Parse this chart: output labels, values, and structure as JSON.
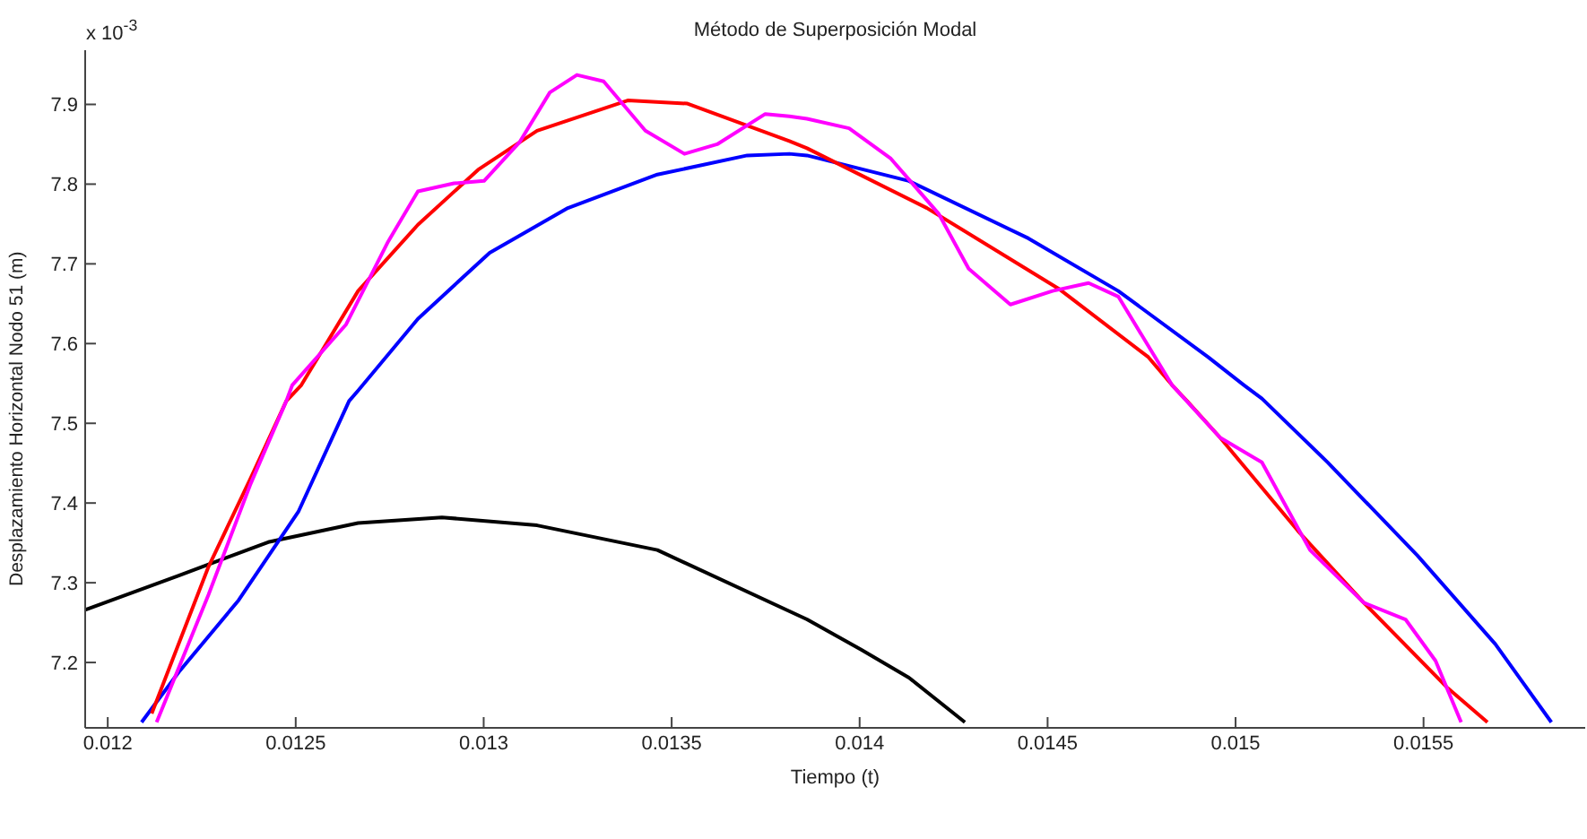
{
  "chart_data": {
    "type": "line",
    "title": "Método de Superposición Modal",
    "xlabel": "Tiempo (t)",
    "ylabel": "Desplazamiento Horizontal Nodo 51 (m)",
    "annotations": [
      "x 10$^{-3}$"
    ],
    "xlim": [
      0.01194,
      0.01593
    ],
    "ylim": [
      7.118,
      7.968
    ],
    "xticks": [
      0.012,
      0.0125,
      0.013,
      0.0135,
      0.014,
      0.0145,
      0.015,
      0.0155
    ],
    "yticks": [
      7.2,
      7.3,
      7.4,
      7.5,
      7.6,
      7.7,
      7.8,
      7.9
    ],
    "grid": false,
    "legend": false,
    "marker": "none",
    "line_style": "solid",
    "series": [
      {
        "color": "#000000",
        "x": [
          0.01194,
          0.012189,
          0.012427,
          0.012666,
          0.012889,
          0.013142,
          0.013462,
          0.01386,
          0.014004,
          0.014131,
          0.01428
        ],
        "values": [
          7.266,
          7.309,
          7.351,
          7.375,
          7.382,
          7.372,
          7.341,
          7.254,
          7.216,
          7.181,
          7.125
        ]
      },
      {
        "color": "#0000ff",
        "x": [
          0.01209,
          0.012189,
          0.012348,
          0.012507,
          0.012642,
          0.012666,
          0.012825,
          0.013016,
          0.013224,
          0.013462,
          0.013701,
          0.013813,
          0.01386,
          0.014131,
          0.014449,
          0.014688,
          0.014927,
          0.015022,
          0.01507,
          0.015245,
          0.015484,
          0.015691,
          0.01584
        ],
        "values": [
          7.125,
          7.188,
          7.278,
          7.389,
          7.528,
          7.541,
          7.631,
          7.714,
          7.77,
          7.812,
          7.836,
          7.838,
          7.836,
          7.804,
          7.732,
          7.666,
          7.583,
          7.548,
          7.531,
          7.451,
          7.334,
          7.223,
          7.125
        ]
      },
      {
        "color": "#ff0000",
        "x": [
          0.012117,
          0.012268,
          0.01238,
          0.012475,
          0.012515,
          0.012666,
          0.012825,
          0.012985,
          0.013142,
          0.013383,
          0.013542,
          0.013813,
          0.01386,
          0.014179,
          0.014529,
          0.014768,
          0.014831,
          0.014871,
          0.014959,
          0.015166,
          0.015341,
          0.015564,
          0.01567
        ],
        "values": [
          7.136,
          7.32,
          7.431,
          7.528,
          7.548,
          7.666,
          7.749,
          7.818,
          7.867,
          7.905,
          7.901,
          7.854,
          7.845,
          7.77,
          7.669,
          7.583,
          7.548,
          7.528,
          7.482,
          7.365,
          7.275,
          7.168,
          7.125
        ]
      },
      {
        "color": "#ff00ff",
        "x": [
          0.01213,
          0.012268,
          0.01238,
          0.012475,
          0.012491,
          0.012634,
          0.012746,
          0.012825,
          0.012921,
          0.013001,
          0.013096,
          0.013176,
          0.013248,
          0.013319,
          0.01343,
          0.013534,
          0.013621,
          0.013749,
          0.013813,
          0.01386,
          0.013972,
          0.014083,
          0.01421,
          0.01429,
          0.014401,
          0.014513,
          0.014609,
          0.014688,
          0.014768,
          0.014831,
          0.014959,
          0.01507,
          0.015134,
          0.015198,
          0.015341,
          0.015452,
          0.015532,
          0.0156
        ],
        "values": [
          7.125,
          7.285,
          7.424,
          7.528,
          7.548,
          7.624,
          7.728,
          7.791,
          7.801,
          7.804,
          7.853,
          7.915,
          7.937,
          7.929,
          7.867,
          7.838,
          7.85,
          7.888,
          7.885,
          7.882,
          7.87,
          7.832,
          7.763,
          7.694,
          7.649,
          7.666,
          7.676,
          7.659,
          7.597,
          7.548,
          7.482,
          7.451,
          7.396,
          7.341,
          7.275,
          7.254,
          7.202,
          7.125
        ]
      }
    ]
  }
}
